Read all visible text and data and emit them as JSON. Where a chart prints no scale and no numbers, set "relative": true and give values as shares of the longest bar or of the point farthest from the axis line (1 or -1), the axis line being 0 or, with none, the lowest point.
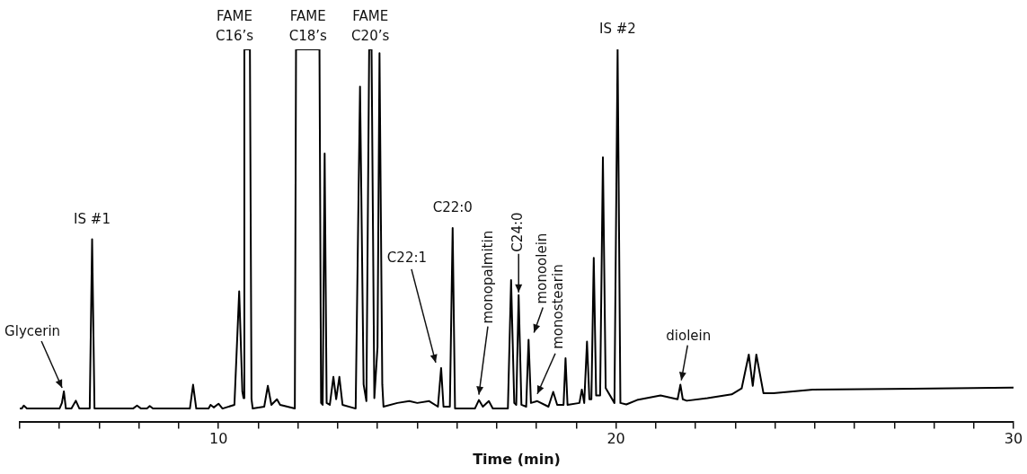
{
  "chart_data": {
    "type": "line",
    "relative": true,
    "xlabel": "Time (min)",
    "xlim": [
      5,
      30
    ],
    "xticks": [
      {
        "value": 5,
        "label": null
      },
      {
        "value": 6,
        "label": null
      },
      {
        "value": 7,
        "label": null
      },
      {
        "value": 8,
        "label": null
      },
      {
        "value": 9,
        "label": null
      },
      10,
      {
        "value": 11,
        "label": null
      },
      {
        "value": 12,
        "label": null
      },
      {
        "value": 13,
        "label": null
      },
      {
        "value": 14,
        "label": null
      },
      {
        "value": 15,
        "label": null
      },
      {
        "value": 16,
        "label": null
      },
      {
        "value": 17,
        "label": null
      },
      {
        "value": 18,
        "label": null
      },
      {
        "value": 19,
        "label": null
      },
      20,
      {
        "value": 21,
        "label": null
      },
      {
        "value": 22,
        "label": null
      },
      {
        "value": 23,
        "label": null
      },
      {
        "value": 24,
        "label": null
      },
      {
        "value": 25,
        "label": null
      },
      {
        "value": 26,
        "label": null
      },
      {
        "value": 27,
        "label": null
      },
      {
        "value": 28,
        "label": null
      },
      {
        "value": 29,
        "label": null
      },
      30
    ],
    "grid": false,
    "legend": false,
    "marker": "none",
    "line_style": "solid",
    "series": [
      {
        "color": "#000000",
        "x": [
          5.0,
          5.05,
          5.1,
          5.18,
          6.0,
          6.06,
          6.11,
          6.16,
          6.3,
          6.41,
          6.5,
          6.76,
          6.82,
          6.88,
          7.85,
          7.95,
          8.05,
          8.2,
          8.27,
          8.35,
          9.28,
          9.36,
          9.44,
          9.75,
          9.8,
          9.88,
          10.0,
          10.1,
          10.4,
          10.52,
          10.6,
          10.63,
          10.65,
          10.79,
          10.83,
          10.86,
          11.15,
          11.24,
          11.33,
          11.47,
          11.55,
          11.92,
          11.95,
          12.54,
          12.58,
          12.62,
          12.67,
          12.72,
          12.8,
          12.89,
          12.96,
          13.04,
          13.12,
          13.45,
          13.56,
          13.65,
          13.72,
          13.79,
          13.85,
          13.92,
          14.0,
          14.05,
          14.12,
          14.15,
          14.5,
          14.8,
          15.0,
          15.3,
          15.52,
          15.6,
          15.66,
          15.82,
          15.89,
          15.95,
          16.45,
          16.55,
          16.65,
          16.8,
          16.9,
          17.28,
          17.36,
          17.44,
          17.49,
          17.55,
          17.62,
          17.74,
          17.8,
          17.86,
          18.02,
          18.3,
          18.42,
          18.52,
          18.68,
          18.73,
          18.78,
          19.08,
          19.14,
          19.2,
          19.27,
          19.33,
          19.38,
          19.44,
          19.5,
          19.6,
          19.67,
          19.74,
          19.96,
          20.04,
          20.11,
          20.26,
          20.53,
          21.12,
          21.55,
          21.62,
          21.68,
          21.78,
          22.3,
          22.91,
          23.16,
          23.34,
          23.44,
          23.53,
          23.71,
          23.96,
          24.95,
          30.0
        ],
        "values": [
          0.035,
          0.035,
          0.043,
          0.035,
          0.035,
          0.05,
          0.081,
          0.035,
          0.035,
          0.056,
          0.035,
          0.035,
          0.49,
          0.035,
          0.035,
          0.043,
          0.035,
          0.035,
          0.042,
          0.035,
          0.035,
          0.099,
          0.035,
          0.035,
          0.045,
          0.038,
          0.048,
          0.035,
          0.045,
          0.35,
          0.08,
          0.063,
          1.0,
          1.0,
          0.06,
          0.035,
          0.04,
          0.096,
          0.045,
          0.06,
          0.045,
          0.035,
          1.0,
          1.0,
          0.05,
          0.045,
          0.72,
          0.05,
          0.045,
          0.12,
          0.06,
          0.12,
          0.045,
          0.035,
          0.9,
          0.1,
          0.055,
          1.0,
          1.0,
          0.063,
          0.2,
          0.99,
          0.1,
          0.04,
          0.05,
          0.055,
          0.05,
          0.055,
          0.04,
          0.144,
          0.04,
          0.04,
          0.52,
          0.035,
          0.035,
          0.058,
          0.04,
          0.055,
          0.035,
          0.035,
          0.38,
          0.05,
          0.045,
          0.34,
          0.045,
          0.04,
          0.22,
          0.05,
          0.055,
          0.04,
          0.08,
          0.045,
          0.045,
          0.17,
          0.045,
          0.05,
          0.086,
          0.05,
          0.215,
          0.06,
          0.06,
          0.44,
          0.07,
          0.07,
          0.71,
          0.09,
          0.05,
          1.0,
          0.05,
          0.046,
          0.058,
          0.07,
          0.06,
          0.099,
          0.06,
          0.056,
          0.063,
          0.073,
          0.089,
          0.18,
          0.096,
          0.18,
          0.076,
          0.076,
          0.086,
          0.091
        ]
      }
    ],
    "annotations": [
      {
        "text": "Glycerin",
        "x": 6.11,
        "y": 0.081
      },
      {
        "text": "IS #1",
        "x": 6.82,
        "y": 0.49
      },
      {
        "text": "FAME C16’s",
        "x": 10.72,
        "y": 1.0
      },
      {
        "text": "FAME C18’s",
        "x": 12.25,
        "y": 1.0
      },
      {
        "text": "FAME C20’s",
        "x": 13.82,
        "y": 1.0
      },
      {
        "text": "C22:1",
        "x": 15.6,
        "y": 0.144
      },
      {
        "text": "C22:0",
        "x": 15.89,
        "y": 0.52
      },
      {
        "text": "monopalmitin",
        "x": 16.55,
        "y": 0.058
      },
      {
        "text": "C24:0",
        "x": 17.55,
        "y": 0.34
      },
      {
        "text": "monoolein",
        "x": 17.8,
        "y": 0.22
      },
      {
        "text": "monostearin",
        "x": 18.02,
        "y": 0.055
      },
      {
        "text": "IS #2",
        "x": 20.04,
        "y": 1.0
      },
      {
        "text": "diolein",
        "x": 21.62,
        "y": 0.099
      }
    ]
  }
}
